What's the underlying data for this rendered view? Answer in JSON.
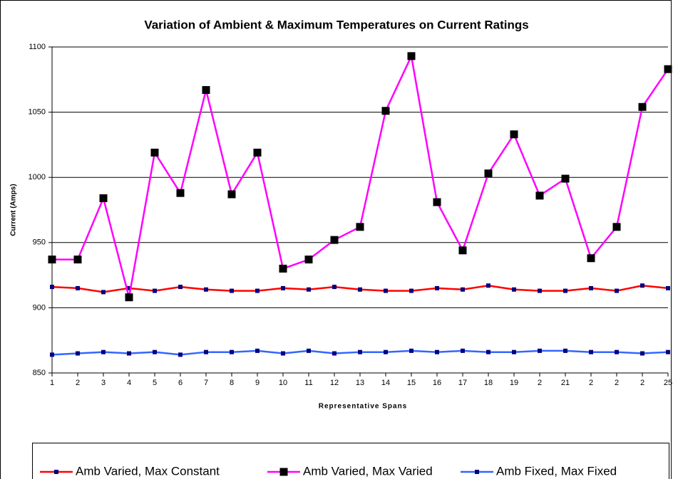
{
  "chart_data": {
    "type": "line",
    "title": "Variation of Ambient & Maximum Temperatures on Current Ratings",
    "x_label": "Representative Spans",
    "y_label": "Current (Amps)",
    "categories": [
      "1",
      "2",
      "3",
      "4",
      "5",
      "6",
      "7",
      "8",
      "9",
      "10",
      "11",
      "12",
      "13",
      "14",
      "15",
      "16",
      "17",
      "18",
      "19",
      "2",
      "21",
      "2",
      "2",
      "2",
      "25"
    ],
    "series": [
      {
        "name": "Amb Varied, Max Constant",
        "color": "#ff0000",
        "marker_color": "#000080",
        "marker_size": 6,
        "values": [
          916,
          915,
          912,
          915,
          913,
          916,
          914,
          913,
          913,
          915,
          914,
          916,
          914,
          913,
          913,
          915,
          914,
          917,
          914,
          913,
          913,
          915,
          913,
          917,
          915
        ]
      },
      {
        "name": "Amb Varied, Max Varied",
        "color": "#ff00ff",
        "marker_color": "#000000",
        "marker_size": 11,
        "values": [
          937,
          937,
          984,
          908,
          1019,
          988,
          1067,
          987,
          1019,
          930,
          937,
          952,
          962,
          1051,
          1093,
          981,
          944,
          1003,
          1033,
          986,
          999,
          938,
          962,
          1054,
          1083
        ]
      },
      {
        "name": "Amb Fixed, Max Fixed",
        "color": "#3366ff",
        "marker_color": "#000080",
        "marker_size": 6,
        "values": [
          864,
          865,
          866,
          865,
          866,
          864,
          866,
          866,
          867,
          865,
          867,
          865,
          866,
          866,
          867,
          866,
          867,
          866,
          866,
          867,
          867,
          866,
          866,
          865,
          866
        ]
      }
    ],
    "ylim": [
      850,
      1100
    ],
    "yticks": [
      850,
      900,
      950,
      1000,
      1050,
      1100
    ],
    "grid": true,
    "legend": "bottom"
  }
}
